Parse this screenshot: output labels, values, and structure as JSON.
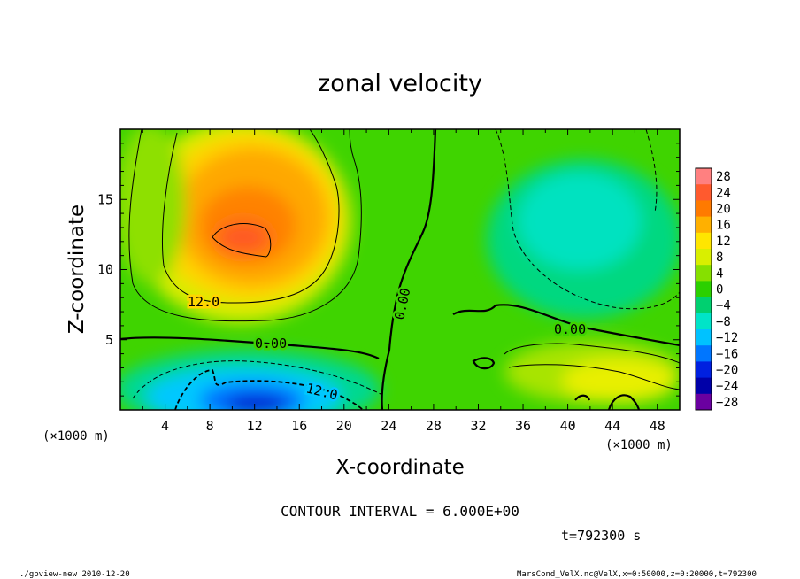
{
  "chart_data": {
    "type": "heatmap",
    "title": "zonal velocity",
    "xlabel": "X-coordinate",
    "ylabel": "Z-coordinate",
    "x_units": "(×1000 m)",
    "y_units": "(×1000 m)",
    "xlim": [
      0,
      50
    ],
    "ylim": [
      0,
      20
    ],
    "x_ticks": [
      4,
      8,
      12,
      16,
      20,
      24,
      28,
      32,
      36,
      40,
      44,
      48
    ],
    "y_ticks": [
      5,
      10,
      15
    ],
    "colorbar_levels": [
      28,
      24,
      20,
      16,
      12,
      8,
      4,
      0,
      -4,
      -8,
      -12,
      -16,
      -20,
      -24,
      -28
    ],
    "colorbar_colors": [
      "#ff8080",
      "#ff5a2e",
      "#ff7a00",
      "#ffb000",
      "#ffe600",
      "#d9ef00",
      "#86e000",
      "#2bd000",
      "#00d070",
      "#00e4c8",
      "#00c2ff",
      "#0076ff",
      "#0020e0",
      "#0000a8",
      "#6a00a0"
    ],
    "contour_interval_text": "CONTOUR INTERVAL = 6.000E+00",
    "contour_labels": [
      "12.0",
      "0.00",
      "0.00",
      "0.00",
      "12.0"
    ],
    "time_text": "t=792300 s",
    "footer_left": "./gpview-new  2010-12-20",
    "footer_right": "MarsCond_VelX.nc@VelX,x=0:50000,z=0:20000,t=792300",
    "grid": false,
    "legend_placement": "right"
  }
}
